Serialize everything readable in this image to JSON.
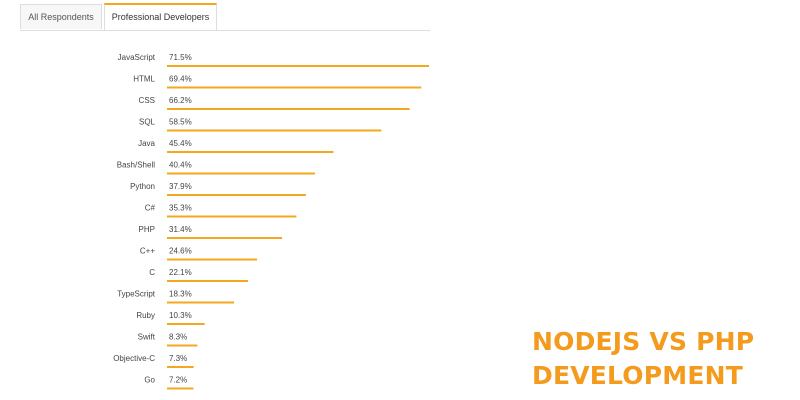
{
  "tabs": [
    {
      "label": "All Respondents",
      "active": false
    },
    {
      "label": "Professional Developers",
      "active": true
    }
  ],
  "heading": {
    "line1": "NODEJS VS PHP",
    "line2": "DEVELOPMENT"
  },
  "colors": {
    "accent": "#f4a81d",
    "heading": "#f49b1d",
    "label": "#444444"
  },
  "chart_data": {
    "type": "bar",
    "orientation": "horizontal",
    "categories": [
      "JavaScript",
      "HTML",
      "CSS",
      "SQL",
      "Java",
      "Bash/Shell",
      "Python",
      "C#",
      "PHP",
      "C++",
      "C",
      "TypeScript",
      "Ruby",
      "Swift",
      "Objective-C",
      "Go"
    ],
    "values": [
      71.5,
      69.4,
      66.2,
      58.5,
      45.4,
      40.4,
      37.9,
      35.3,
      31.4,
      24.6,
      22.1,
      18.3,
      10.3,
      8.3,
      7.3,
      7.2
    ],
    "value_labels": [
      "71.5%",
      "69.4%",
      "66.2%",
      "58.5%",
      "45.4%",
      "40.4%",
      "37.9%",
      "35.3%",
      "31.4%",
      "24.6%",
      "22.1%",
      "18.3%",
      "10.3%",
      "8.3%",
      "7.3%",
      "7.2%"
    ],
    "title": "",
    "xlabel": "",
    "ylabel": "",
    "xlim": [
      0,
      71.5
    ],
    "grid": false,
    "legend": "none"
  }
}
